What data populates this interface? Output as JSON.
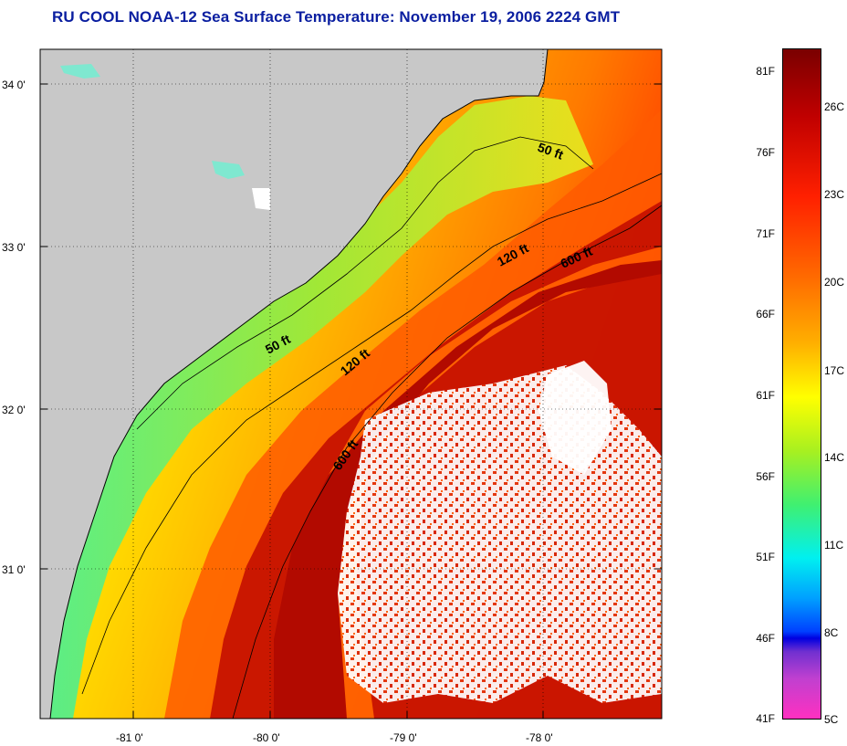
{
  "title": "RU COOL  NOAA-12  Sea Surface Temperature:  November 19, 2006 2224 GMT",
  "map": {
    "x_ticks": [
      "-81 0'",
      "-80 0'",
      "-79 0'",
      "-78 0'"
    ],
    "y_ticks": [
      "34 0'",
      "33 0'",
      "32 0'",
      "31 0'"
    ],
    "contours": [
      "50 ft",
      "120 ft",
      "600 ft",
      "50 ft",
      "120 ft",
      "600 ft"
    ]
  },
  "colorbar": {
    "fahrenheit": [
      "81F",
      "76F",
      "71F",
      "66F",
      "61F",
      "56F",
      "51F",
      "46F",
      "41F"
    ],
    "celsius": [
      "26C",
      "23C",
      "20C",
      "17C",
      "14C",
      "11C",
      "8C",
      "5C"
    ]
  },
  "colors": {
    "land": "#c8c8c8",
    "title": "#0a1ea0",
    "warm": "#e01e00",
    "gulf_stream": "#b40a00"
  }
}
